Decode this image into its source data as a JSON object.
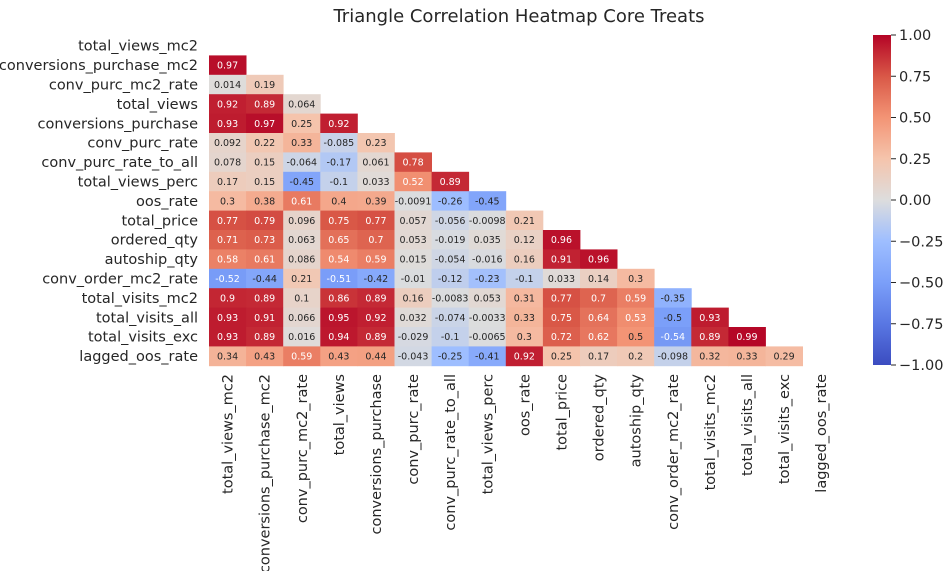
{
  "chart_data": {
    "type": "heatmap",
    "title": "Triangle Correlation Heatmap Core Treats",
    "variables": [
      "total_views_mc2",
      "conversions_purchase_mc2",
      "conv_purc_mc2_rate",
      "total_views",
      "conversions_purchase",
      "conv_purc_rate",
      "conv_purc_rate_to_all",
      "total_views_perc",
      "oos_rate",
      "total_price",
      "ordered_qty",
      "autoship_qty",
      "conv_order_mc2_rate",
      "total_visits_mc2",
      "total_visits_all",
      "total_visits_exc",
      "lagged_oos_rate"
    ],
    "values": [
      [],
      [
        "0.97"
      ],
      [
        "0.014",
        "0.19"
      ],
      [
        "0.92",
        "0.89",
        "0.064"
      ],
      [
        "0.93",
        "0.97",
        "0.25",
        "0.92"
      ],
      [
        "0.092",
        "0.22",
        "0.33",
        "-0.085",
        "0.23"
      ],
      [
        "0.078",
        "0.15",
        "-0.064",
        "-0.17",
        "0.061",
        "0.78"
      ],
      [
        "0.17",
        "0.15",
        "-0.45",
        "-0.1",
        "0.033",
        "0.52",
        "0.89"
      ],
      [
        "0.3",
        "0.38",
        "0.61",
        "0.4",
        "0.39",
        "-0.0091",
        "-0.26",
        "-0.45"
      ],
      [
        "0.77",
        "0.79",
        "0.096",
        "0.75",
        "0.77",
        "0.057",
        "-0.056",
        "-0.0098",
        "0.21"
      ],
      [
        "0.71",
        "0.73",
        "0.063",
        "0.65",
        "0.7",
        "0.053",
        "-0.019",
        "0.035",
        "0.12",
        "0.96"
      ],
      [
        "0.58",
        "0.61",
        "0.086",
        "0.54",
        "0.59",
        "0.015",
        "-0.054",
        "-0.016",
        "0.16",
        "0.91",
        "0.96"
      ],
      [
        "-0.52",
        "-0.44",
        "0.21",
        "-0.51",
        "-0.42",
        "-0.01",
        "-0.12",
        "-0.23",
        "-0.1",
        "0.033",
        "0.14",
        "0.3"
      ],
      [
        "0.9",
        "0.89",
        "0.1",
        "0.86",
        "0.89",
        "0.16",
        "-0.0083",
        "0.053",
        "0.31",
        "0.77",
        "0.7",
        "0.59",
        "-0.35"
      ],
      [
        "0.93",
        "0.91",
        "0.066",
        "0.95",
        "0.92",
        "0.032",
        "-0.074",
        "-0.0033",
        "0.33",
        "0.75",
        "0.64",
        "0.53",
        "-0.5",
        "0.93"
      ],
      [
        "0.93",
        "0.89",
        "0.016",
        "0.94",
        "0.89",
        "-0.029",
        "-0.1",
        "-0.0065",
        "0.3",
        "0.72",
        "0.62",
        "0.5",
        "-0.54",
        "0.89",
        "0.99"
      ],
      [
        "0.34",
        "0.43",
        "0.59",
        "0.43",
        "0.44",
        "-0.043",
        "-0.25",
        "-0.41",
        "0.92",
        "0.25",
        "0.17",
        "0.2",
        "-0.098",
        "0.32",
        "0.33",
        "0.29"
      ]
    ],
    "colorbar": {
      "min": -1.0,
      "max": 1.0,
      "ticks": [
        "1.00",
        "0.75",
        "0.50",
        "0.25",
        "0.00",
        "−0.25",
        "−0.50",
        "−0.75",
        "−1.00"
      ]
    },
    "colormap": "coolwarm",
    "colors": {
      "low": "#3b4cc0",
      "mid": "#dddddd",
      "high": "#b40426"
    }
  }
}
